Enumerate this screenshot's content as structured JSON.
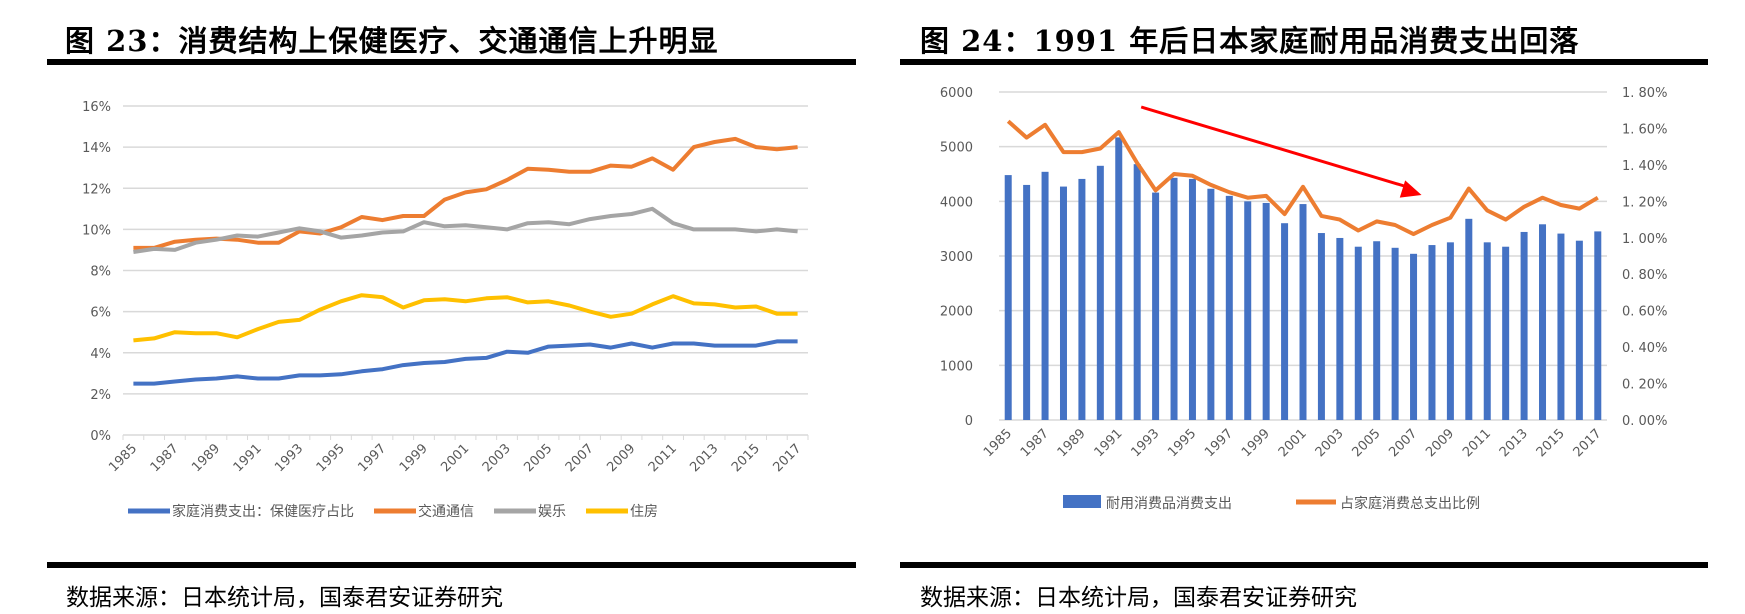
{
  "left_panel": {
    "title": "图 23：消费结构上保健医疗、交通通信上升明显",
    "source": "数据来源：日本统计局，国泰君安证券研究"
  },
  "right_panel": {
    "title": "图 24：1991 年后日本家庭耐用品消费支出回落",
    "source": "数据来源：日本统计局，国泰君安证券研究"
  },
  "chart_data": [
    {
      "type": "line",
      "x": [
        1985,
        1986,
        1987,
        1988,
        1989,
        1990,
        1991,
        1992,
        1993,
        1994,
        1995,
        1996,
        1997,
        1998,
        1999,
        2000,
        2001,
        2002,
        2003,
        2004,
        2005,
        2006,
        2007,
        2008,
        2009,
        2010,
        2011,
        2012,
        2013,
        2014,
        2015,
        2016,
        2017
      ],
      "x_tick_labels": [
        "1985",
        "1987",
        "1989",
        "1991",
        "1993",
        "1995",
        "1997",
        "1999",
        "2001",
        "2003",
        "2005",
        "2007",
        "2009",
        "2011",
        "2013",
        "2015",
        "2017"
      ],
      "y_tick_labels": [
        "0%",
        "2%",
        "4%",
        "6%",
        "8%",
        "10%",
        "12%",
        "14%",
        "16%"
      ],
      "ylim": [
        0,
        16
      ],
      "y_unit": "%",
      "grid": true,
      "legend_placement": "bottom",
      "series": [
        {
          "name": "家庭消费支出：保健医疗占比",
          "color": "#4472C4",
          "values": [
            2.5,
            2.5,
            2.6,
            2.7,
            2.75,
            2.85,
            2.75,
            2.75,
            2.9,
            2.9,
            2.95,
            3.1,
            3.2,
            3.4,
            3.5,
            3.55,
            3.7,
            3.75,
            4.05,
            4.0,
            4.3,
            4.35,
            4.4,
            4.25,
            4.45,
            4.25,
            4.45,
            4.45,
            4.35,
            4.35,
            4.35,
            4.55,
            4.55
          ]
        },
        {
          "name": "交通通信",
          "color": "#ED7D31",
          "values": [
            9.1,
            9.1,
            9.4,
            9.5,
            9.55,
            9.5,
            9.35,
            9.35,
            9.9,
            9.8,
            10.1,
            10.6,
            10.45,
            10.65,
            10.65,
            11.45,
            11.8,
            11.95,
            12.4,
            12.95,
            12.9,
            12.8,
            12.8,
            13.1,
            13.05,
            13.45,
            12.9,
            14.0,
            14.25,
            14.4,
            14.0,
            13.9,
            14.0
          ]
        },
        {
          "name": "娱乐",
          "color": "#A5A5A5",
          "values": [
            8.9,
            9.05,
            9.0,
            9.35,
            9.5,
            9.7,
            9.65,
            9.85,
            10.05,
            9.9,
            9.6,
            9.7,
            9.85,
            9.9,
            10.35,
            10.15,
            10.2,
            10.1,
            10.0,
            10.3,
            10.35,
            10.25,
            10.5,
            10.65,
            10.75,
            11.0,
            10.3,
            10.0,
            10.0,
            10.0,
            9.9,
            10.0,
            9.9
          ]
        },
        {
          "name": "住房",
          "color": "#FFC000",
          "values": [
            4.6,
            4.7,
            5.0,
            4.95,
            4.95,
            4.75,
            5.15,
            5.5,
            5.6,
            6.1,
            6.5,
            6.8,
            6.7,
            6.2,
            6.55,
            6.6,
            6.5,
            6.65,
            6.7,
            6.45,
            6.5,
            6.3,
            6.0,
            5.75,
            5.9,
            6.35,
            6.75,
            6.4,
            6.35,
            6.2,
            6.25,
            5.9,
            5.9
          ]
        }
      ]
    },
    {
      "type": "bar",
      "x": [
        1985,
        1986,
        1987,
        1988,
        1989,
        1990,
        1991,
        1992,
        1993,
        1994,
        1995,
        1996,
        1997,
        1998,
        1999,
        2000,
        2001,
        2002,
        2003,
        2004,
        2005,
        2006,
        2007,
        2008,
        2009,
        2010,
        2011,
        2012,
        2013,
        2014,
        2015,
        2016,
        2017
      ],
      "x_tick_labels": [
        "1985",
        "1987",
        "1989",
        "1991",
        "1993",
        "1995",
        "1997",
        "1999",
        "2001",
        "2003",
        "2005",
        "2007",
        "2009",
        "2011",
        "2013",
        "2015",
        "2017"
      ],
      "y_left_tick_labels": [
        "0",
        "1000",
        "2000",
        "3000",
        "4000",
        "5000",
        "6000"
      ],
      "y_right_tick_labels": [
        "0. 00%",
        "0. 20%",
        "0. 40%",
        "0. 60%",
        "0. 80%",
        "1. 00%",
        "1. 20%",
        "1. 40%",
        "1. 60%",
        "1. 80%"
      ],
      "ylim_left": [
        0,
        6000
      ],
      "ylim_right": [
        0,
        1.8
      ],
      "grid": true,
      "legend_placement": "bottom",
      "annotation": "red downward trend arrow from 1992 to 2007",
      "annotation_color": "#FF0000",
      "series": [
        {
          "name": "耐用消费品消费支出",
          "type": "bar",
          "axis": "left",
          "color": "#4472C4",
          "values": [
            4480,
            4300,
            4540,
            4270,
            4410,
            4650,
            5170,
            4680,
            4160,
            4430,
            4410,
            4230,
            4100,
            4000,
            3970,
            3600,
            3950,
            3420,
            3330,
            3170,
            3270,
            3150,
            3040,
            3200,
            3250,
            3680,
            3250,
            3170,
            3440,
            3580,
            3410,
            3280,
            3450
          ]
        },
        {
          "name": "占家庭消费总支出比例",
          "type": "line",
          "axis": "right",
          "unit": "%",
          "color": "#ED7D31",
          "values": [
            1.64,
            1.55,
            1.62,
            1.47,
            1.47,
            1.49,
            1.58,
            1.41,
            1.26,
            1.35,
            1.34,
            1.29,
            1.25,
            1.22,
            1.23,
            1.13,
            1.28,
            1.12,
            1.1,
            1.04,
            1.09,
            1.07,
            1.02,
            1.07,
            1.11,
            1.27,
            1.15,
            1.1,
            1.17,
            1.22,
            1.18,
            1.16,
            1.22
          ]
        }
      ]
    }
  ]
}
